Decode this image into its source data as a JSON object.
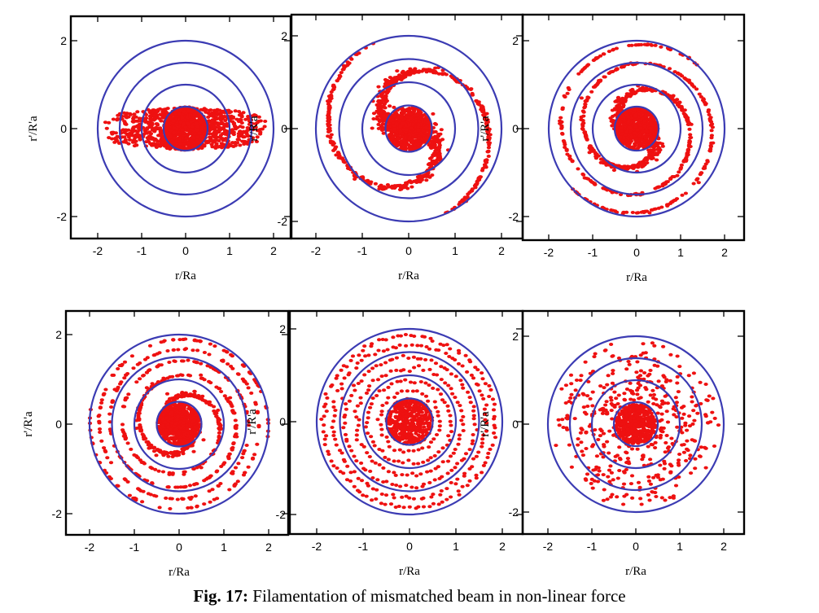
{
  "caption": {
    "label": "Fig. 17:",
    "text": " Filamentation of mismatched beam in non-linear force"
  },
  "colors": {
    "circle": "#3b3bb3",
    "points": "#ee1111",
    "frame": "#000000"
  },
  "chart_data": [
    {
      "type": "scatter",
      "xlabel": "r/Ra",
      "ylabel": "r'/R'a",
      "xlim": [
        -2.5,
        2.5
      ],
      "ylim": [
        -2.5,
        2.5
      ],
      "xticks": [
        "-2",
        "-1",
        "0",
        "1",
        "2"
      ],
      "yticks": [
        "2",
        "0",
        "-2"
      ],
      "ring_radii": [
        0.5,
        1.0,
        1.5,
        2.0
      ],
      "pattern": "ellipse",
      "filamentation_turns": 0
    },
    {
      "type": "scatter",
      "xlabel": "r/Ra",
      "ylabel": "r'/R'a",
      "xlim": [
        -2.5,
        2.5
      ],
      "ylim": [
        -2.5,
        2.5
      ],
      "xticks": [
        "-2",
        "-1",
        "0",
        "1",
        "2"
      ],
      "yticks": [
        "2",
        "0",
        "-2"
      ],
      "ring_radii": [
        0.5,
        1.0,
        1.5,
        2.0
      ],
      "pattern": "spiral",
      "filamentation_turns": 0.6
    },
    {
      "type": "scatter",
      "xlabel": "r/Ra",
      "ylabel": "r'/R'a",
      "xlim": [
        -2.5,
        2.5
      ],
      "ylim": [
        -2.5,
        2.5
      ],
      "xticks": [
        "-2",
        "-1",
        "0",
        "1",
        "2"
      ],
      "yticks": [
        "2",
        "0",
        "-2"
      ],
      "ring_radii": [
        0.5,
        1.0,
        1.5,
        2.0
      ],
      "pattern": "spiral",
      "filamentation_turns": 1.2
    },
    {
      "type": "scatter",
      "xlabel": "r/Ra",
      "ylabel": "r'/R'a",
      "xlim": [
        -2.5,
        2.5
      ],
      "ylim": [
        -2.5,
        2.5
      ],
      "xticks": [
        "-2",
        "-1",
        "0",
        "1",
        "2"
      ],
      "yticks": [
        "2",
        "0",
        "-2"
      ],
      "ring_radii": [
        0.5,
        1.0,
        1.5,
        2.0
      ],
      "pattern": "spiral",
      "filamentation_turns": 2.2
    },
    {
      "type": "scatter",
      "xlabel": "r/Ra",
      "ylabel": "r'/R'a",
      "xlim": [
        -2.5,
        2.5
      ],
      "ylim": [
        -2.5,
        2.5
      ],
      "xticks": [
        "-2",
        "-1",
        "0",
        "1",
        "2"
      ],
      "yticks": [
        "2",
        "0",
        "-2"
      ],
      "ring_radii": [
        0.5,
        1.0,
        1.5,
        2.0
      ],
      "pattern": "rings",
      "filamentation_turns": 4
    },
    {
      "type": "scatter",
      "xlabel": "r/Ra",
      "ylabel": "r'/R'a",
      "xlim": [
        -2.5,
        2.5
      ],
      "ylim": [
        -2.5,
        2.5
      ],
      "xticks": [
        "-2",
        "-1",
        "0",
        "1",
        "2"
      ],
      "yticks": [
        "2",
        "0",
        "-2"
      ],
      "ring_radii": [
        0.5,
        1.0,
        1.5,
        2.0
      ],
      "pattern": "diffuse",
      "filamentation_turns": 8
    }
  ]
}
